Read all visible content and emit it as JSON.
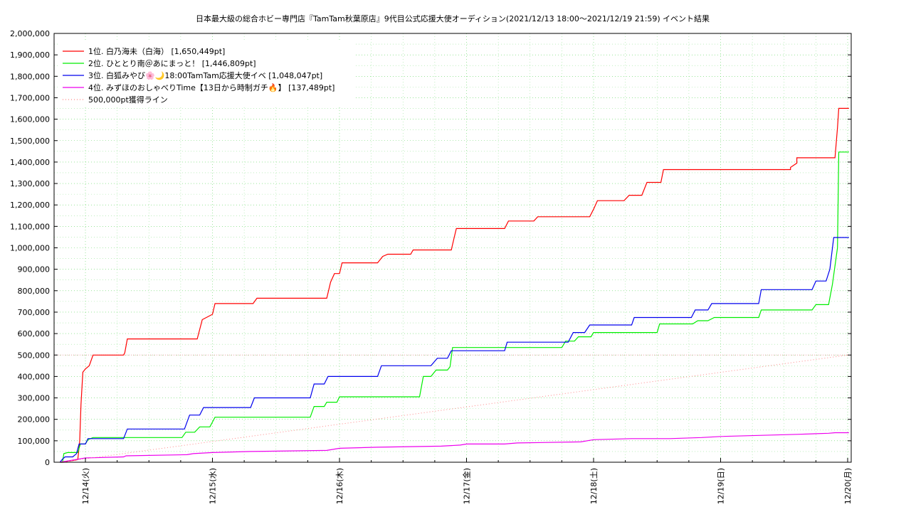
{
  "chart_data": {
    "type": "line",
    "title": "日本最大級の総合ホビー専門店『TamTam秋葉原店』9代目公式応援大使オーディション(2021/12/13 18:00〜2021/12/19 21:59)",
    "subtitle": "イベント結果",
    "xlabel": "",
    "ylabel": "",
    "x_ticks": [
      "12/14(火)",
      "12/15(水)",
      "12/16(木)",
      "12/17(金)",
      "12/18(土)",
      "12/19(日)",
      "12/20(月)"
    ],
    "y_ticks": [
      "0",
      "100,000",
      "200,000",
      "300,000",
      "400,000",
      "500,000",
      "600,000",
      "700,000",
      "800,000",
      "900,000",
      "1,000,000",
      "1,100,000",
      "1,200,000",
      "1,300,000",
      "1,400,000",
      "1,500,000",
      "1,600,000",
      "1,700,000",
      "1,800,000",
      "1,900,000",
      "2,000,000"
    ],
    "ylim": [
      0,
      2000000
    ],
    "grid": true,
    "legend_position": "top-left",
    "series": [
      {
        "name": "1位. 白乃海未（白海） [1,650,449pt]",
        "color": "#ff0000",
        "points": [
          [
            -0.2,
            0
          ],
          [
            -0.17,
            0
          ],
          [
            -0.14,
            5000
          ],
          [
            -0.1,
            8000
          ],
          [
            -0.08,
            10000
          ],
          [
            -0.06,
            12000
          ],
          [
            -0.045,
            100000
          ],
          [
            -0.035,
            270000
          ],
          [
            -0.02,
            420000
          ],
          [
            0.0,
            435000
          ],
          [
            0.03,
            450000
          ],
          [
            0.06,
            500000
          ],
          [
            0.3,
            500000
          ],
          [
            0.31,
            510000
          ],
          [
            0.33,
            575000
          ],
          [
            0.55,
            575000
          ],
          [
            0.88,
            575000
          ],
          [
            0.92,
            665000
          ],
          [
            1.0,
            690000
          ],
          [
            1.02,
            740000
          ],
          [
            1.32,
            740000
          ],
          [
            1.35,
            765000
          ],
          [
            1.9,
            765000
          ],
          [
            1.93,
            840000
          ],
          [
            1.96,
            880000
          ],
          [
            2.0,
            880000
          ],
          [
            2.02,
            930000
          ],
          [
            2.3,
            930000
          ],
          [
            2.34,
            960000
          ],
          [
            2.38,
            970000
          ],
          [
            2.56,
            970000
          ],
          [
            2.58,
            990000
          ],
          [
            2.88,
            990000
          ],
          [
            2.9,
            1040000
          ],
          [
            2.92,
            1090000
          ],
          [
            3.3,
            1090000
          ],
          [
            3.33,
            1125000
          ],
          [
            3.53,
            1125000
          ],
          [
            3.56,
            1145000
          ],
          [
            3.97,
            1145000
          ],
          [
            4.0,
            1180000
          ],
          [
            4.03,
            1220000
          ],
          [
            4.24,
            1220000
          ],
          [
            4.28,
            1245000
          ],
          [
            4.38,
            1245000
          ],
          [
            4.42,
            1305000
          ],
          [
            4.53,
            1305000
          ],
          [
            4.55,
            1365000
          ],
          [
            5.55,
            1365000
          ],
          [
            5.55,
            1375000
          ],
          [
            5.6,
            1395000
          ],
          [
            5.6,
            1420000
          ],
          [
            5.9,
            1420000
          ],
          [
            5.92,
            1560000
          ],
          [
            5.93,
            1650449
          ],
          [
            6.01,
            1650449
          ]
        ]
      },
      {
        "name": "2位. ひととり南＠あにまっと！ [1,446,809pt]",
        "color": "#00ee00",
        "points": [
          [
            -0.2,
            0
          ],
          [
            -0.18,
            0
          ],
          [
            -0.17,
            40000
          ],
          [
            -0.14,
            45000
          ],
          [
            -0.1,
            45000
          ],
          [
            -0.06,
            45000
          ],
          [
            -0.04,
            85000
          ],
          [
            0.0,
            85000
          ],
          [
            0.02,
            105000
          ],
          [
            0.06,
            115000
          ],
          [
            0.3,
            115000
          ],
          [
            0.5,
            115000
          ],
          [
            0.76,
            115000
          ],
          [
            0.79,
            140000
          ],
          [
            0.86,
            140000
          ],
          [
            0.9,
            165000
          ],
          [
            0.98,
            165000
          ],
          [
            1.02,
            210000
          ],
          [
            1.2,
            210000
          ],
          [
            1.3,
            210000
          ],
          [
            1.77,
            210000
          ],
          [
            1.8,
            260000
          ],
          [
            1.88,
            260000
          ],
          [
            1.9,
            280000
          ],
          [
            1.98,
            280000
          ],
          [
            2.0,
            305000
          ],
          [
            2.3,
            305000
          ],
          [
            2.5,
            305000
          ],
          [
            2.63,
            305000
          ],
          [
            2.66,
            400000
          ],
          [
            2.72,
            400000
          ],
          [
            2.76,
            430000
          ],
          [
            2.85,
            430000
          ],
          [
            2.87,
            445000
          ],
          [
            2.89,
            535000
          ],
          [
            3.0,
            535000
          ],
          [
            3.3,
            535000
          ],
          [
            3.75,
            535000
          ],
          [
            3.78,
            565000
          ],
          [
            3.85,
            565000
          ],
          [
            3.88,
            585000
          ],
          [
            3.98,
            585000
          ],
          [
            4.0,
            605000
          ],
          [
            4.3,
            605000
          ],
          [
            4.5,
            605000
          ],
          [
            4.52,
            645000
          ],
          [
            4.78,
            645000
          ],
          [
            4.82,
            660000
          ],
          [
            4.9,
            660000
          ],
          [
            4.95,
            675000
          ],
          [
            5.3,
            675000
          ],
          [
            5.32,
            710000
          ],
          [
            5.52,
            710000
          ],
          [
            5.72,
            710000
          ],
          [
            5.75,
            735000
          ],
          [
            5.85,
            735000
          ],
          [
            5.88,
            830000
          ],
          [
            5.92,
            1000000
          ],
          [
            5.93,
            1446809
          ],
          [
            6.01,
            1446809
          ]
        ]
      },
      {
        "name": "3位. 白狐みやび🌸🌙18:00TamTam応援大使イベ [1,048,047pt]",
        "color": "#0000ee",
        "points": [
          [
            -0.2,
            0
          ],
          [
            -0.18,
            15000
          ],
          [
            -0.16,
            25000
          ],
          [
            -0.1,
            25000
          ],
          [
            -0.07,
            40000
          ],
          [
            -0.05,
            85000
          ],
          [
            0.0,
            85000
          ],
          [
            0.02,
            110000
          ],
          [
            0.3,
            110000
          ],
          [
            0.33,
            155000
          ],
          [
            0.78,
            155000
          ],
          [
            0.82,
            220000
          ],
          [
            0.9,
            220000
          ],
          [
            0.93,
            255000
          ],
          [
            1.1,
            255000
          ],
          [
            1.2,
            255000
          ],
          [
            1.3,
            255000
          ],
          [
            1.33,
            300000
          ],
          [
            1.6,
            300000
          ],
          [
            1.77,
            300000
          ],
          [
            1.8,
            365000
          ],
          [
            1.88,
            365000
          ],
          [
            1.91,
            400000
          ],
          [
            2.0,
            400000
          ],
          [
            2.3,
            400000
          ],
          [
            2.33,
            450000
          ],
          [
            2.5,
            450000
          ],
          [
            2.72,
            450000
          ],
          [
            2.77,
            485000
          ],
          [
            2.85,
            485000
          ],
          [
            2.88,
            520000
          ],
          [
            3.0,
            520000
          ],
          [
            3.3,
            520000
          ],
          [
            3.32,
            560000
          ],
          [
            3.6,
            560000
          ],
          [
            3.8,
            560000
          ],
          [
            3.84,
            605000
          ],
          [
            3.93,
            605000
          ],
          [
            3.97,
            640000
          ],
          [
            4.2,
            640000
          ],
          [
            4.3,
            640000
          ],
          [
            4.32,
            675000
          ],
          [
            4.5,
            675000
          ],
          [
            4.77,
            675000
          ],
          [
            4.8,
            710000
          ],
          [
            4.9,
            710000
          ],
          [
            4.93,
            740000
          ],
          [
            5.2,
            740000
          ],
          [
            5.3,
            740000
          ],
          [
            5.32,
            805000
          ],
          [
            5.6,
            805000
          ],
          [
            5.72,
            805000
          ],
          [
            5.75,
            845000
          ],
          [
            5.83,
            845000
          ],
          [
            5.86,
            900000
          ],
          [
            5.89,
            1048047
          ],
          [
            6.01,
            1048047
          ]
        ]
      },
      {
        "name": "4位. みずほのおしゃべりTime【13日から時制ガチ🔥】 [137,489pt]",
        "color": "#ee00ee",
        "points": [
          [
            -0.2,
            0
          ],
          [
            -0.15,
            5000
          ],
          [
            -0.1,
            10000
          ],
          [
            -0.05,
            15000
          ],
          [
            0.0,
            20000
          ],
          [
            0.3,
            25000
          ],
          [
            0.32,
            30000
          ],
          [
            0.8,
            35000
          ],
          [
            0.85,
            40000
          ],
          [
            1.0,
            45000
          ],
          [
            1.3,
            50000
          ],
          [
            1.9,
            55000
          ],
          [
            2.0,
            65000
          ],
          [
            2.3,
            70000
          ],
          [
            2.8,
            75000
          ],
          [
            2.95,
            80000
          ],
          [
            3.0,
            85000
          ],
          [
            3.3,
            85000
          ],
          [
            3.4,
            90000
          ],
          [
            3.9,
            95000
          ],
          [
            4.0,
            105000
          ],
          [
            4.3,
            110000
          ],
          [
            4.6,
            110000
          ],
          [
            4.85,
            115000
          ],
          [
            5.0,
            120000
          ],
          [
            5.3,
            125000
          ],
          [
            5.6,
            130000
          ],
          [
            5.85,
            135000
          ],
          [
            5.9,
            137489
          ],
          [
            6.01,
            137489
          ]
        ]
      },
      {
        "name": "500,000pt獲得ライン",
        "color": "#ff8888",
        "dotted": true,
        "points": [
          [
            -0.2,
            0
          ],
          [
            6.0,
            500000
          ]
        ]
      }
    ]
  },
  "reference_line": {
    "value": 500000,
    "color": "#e8a0a0"
  },
  "colors": {
    "grid": "#33cc33",
    "axis": "#000000"
  }
}
